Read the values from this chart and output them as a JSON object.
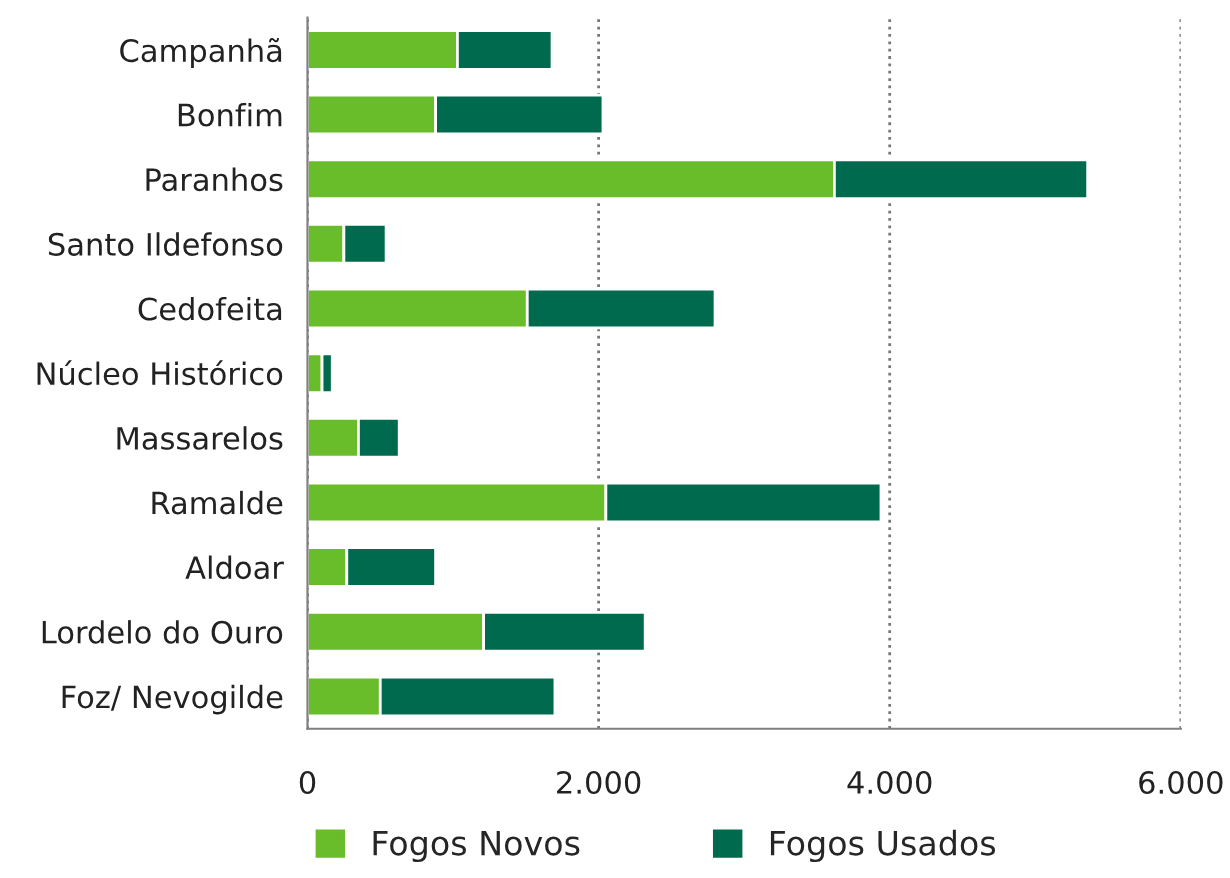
{
  "chart_data": {
    "type": "bar",
    "orientation": "horizontal",
    "stacked": true,
    "categories": [
      "Campanhã",
      "Bonfim",
      "Paranhos",
      "Santo Ildefonso",
      "Cedofeita",
      "Núcleo Histórico",
      "Massarelos",
      "Ramalde",
      "Aldoar",
      "Lordelo do Ouro",
      "Foz/ Nevogilde"
    ],
    "series": [
      {
        "name": "Fogos Novos",
        "color": "#6abd2a",
        "values": [
          1030,
          880,
          3620,
          250,
          1510,
          100,
          350,
          2050,
          270,
          1210,
          500
        ]
      },
      {
        "name": "Fogos Usados",
        "color": "#006a4e",
        "values": [
          650,
          1150,
          1740,
          290,
          1290,
          70,
          280,
          1890,
          610,
          1110,
          1200
        ]
      }
    ],
    "xlim": [
      0,
      6000
    ],
    "xticks": [
      0,
      {
        "value": 2000,
        "label": "2.000"
      },
      {
        "value": 4000,
        "label": "4.000"
      },
      {
        "value": 6000,
        "label": "6.000"
      }
    ],
    "grid": "x",
    "legend": "bottom"
  }
}
